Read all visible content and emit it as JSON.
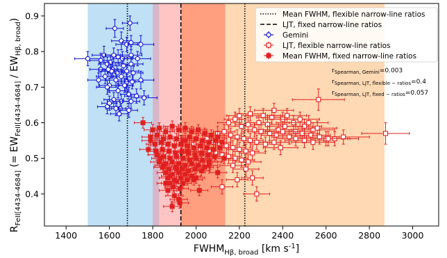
{
  "chart_data": {
    "type": "scatter",
    "xlabel": "FWHM",
    "xlabel_sub": "Hβ, broad",
    "xlabel_unit": " [km s",
    "xlabel_unit_sup": "-1",
    "xlabel_end": "]",
    "ylabel_main": "R",
    "ylabel_sub1": "FeII[4434-4684]",
    "ylabel_mid": " (= EW",
    "ylabel_sub2": "FeII[4434-4684]",
    "ylabel_mid2": " / EW",
    "ylabel_sub3": "Hβ, broad",
    "ylabel_end": ")",
    "xlim": [
      1300,
      3120
    ],
    "ylim": [
      0.31,
      0.935
    ],
    "xticks": [
      1400,
      1600,
      1800,
      2000,
      2200,
      2400,
      2600,
      2800,
      3000
    ],
    "yticks": [
      0.4,
      0.5,
      0.6,
      0.7,
      0.8,
      0.9
    ],
    "grid": false,
    "legend_position": "top-right",
    "bands": [
      {
        "x0": 1500,
        "x1": 1800,
        "color": "#bfe0f5"
      },
      {
        "x0": 1800,
        "x1": 1830,
        "color": "#d6b6c8"
      },
      {
        "x0": 1830,
        "x1": 1930,
        "color": "#ffc4c4"
      },
      {
        "x0": 1930,
        "x1": 2135,
        "color": "#ff9f80"
      },
      {
        "x0": 2135,
        "x1": 2870,
        "color": "#ffd9b3"
      }
    ],
    "vlines": [
      {
        "x": 1683,
        "style": "dotted"
      },
      {
        "x": 1930,
        "style": "dashed"
      },
      {
        "x": 2225,
        "style": "dotted"
      }
    ],
    "legend": [
      {
        "label": "Mean FWHM, flexible narrow-line ratios",
        "marker": "dotted-line"
      },
      {
        "label": "LJT, fixed narrow-line ratios",
        "marker": "dashed-line"
      },
      {
        "label": "Gemini",
        "marker": "open-circle",
        "color": "#1010d0"
      },
      {
        "label": "LJT, flexible narrow-line ratios",
        "marker": "open-square",
        "color": "#e02020"
      },
      {
        "label": "Mean FWHM, fixed narrow-line ratios",
        "marker": "filled-square",
        "color": "#e02020"
      }
    ],
    "annotations": [
      {
        "main": "r",
        "sub": "Spearman, Gemini",
        "value": "=0.003"
      },
      {
        "main": "r",
        "sub": "Spearman, LJT, flexible − ratios",
        "value": "=0.4"
      },
      {
        "main": "r",
        "sub": "Spearman, LJT, fixed − ratios",
        "value": "=0.057"
      }
    ],
    "series": [
      {
        "name": "Gemini",
        "color": "#1010d0",
        "marker": "open-circle",
        "x": [
          1695,
          1625,
          1655,
          1700,
          1680,
          1745,
          1500,
          1560,
          1575,
          1640,
          1605,
          1590,
          1660,
          1700,
          1730,
          1560,
          1605,
          1635,
          1550,
          1680,
          1615,
          1710,
          1655,
          1630,
          1675,
          1600,
          1590,
          1680,
          1640,
          1705,
          1745,
          1690,
          1725,
          1760,
          1620,
          1655,
          1700,
          1590,
          1650,
          1600,
          1690,
          1645,
          1610,
          1665,
          1670,
          1700,
          1595,
          1620,
          1580,
          1630
        ],
        "y": [
          0.88,
          0.865,
          0.83,
          0.825,
          0.82,
          0.82,
          0.78,
          0.775,
          0.79,
          0.785,
          0.77,
          0.765,
          0.78,
          0.79,
          0.78,
          0.75,
          0.745,
          0.74,
          0.72,
          0.745,
          0.75,
          0.74,
          0.73,
          0.72,
          0.705,
          0.705,
          0.7,
          0.715,
          0.69,
          0.715,
          0.72,
          0.68,
          0.675,
          0.67,
          0.665,
          0.66,
          0.66,
          0.645,
          0.64,
          0.655,
          0.635,
          0.625,
          0.745,
          0.76,
          0.705,
          0.765,
          0.75,
          0.79,
          0.73,
          0.64
        ],
        "xerr": [
          35,
          40,
          45,
          40,
          50,
          60,
          60,
          50,
          55,
          70,
          50,
          40,
          45,
          50,
          60,
          50,
          55,
          45,
          50,
          55,
          40,
          45,
          40,
          45,
          35,
          45,
          50,
          40,
          45,
          50,
          60,
          40,
          55,
          60,
          45,
          40,
          40,
          45,
          40,
          35,
          40,
          40,
          45,
          50,
          40,
          55,
          45,
          40,
          40,
          45
        ],
        "yerr": [
          0.02,
          0.025,
          0.025,
          0.02,
          0.02,
          0.025,
          0.02,
          0.02,
          0.025,
          0.02,
          0.02,
          0.02,
          0.02,
          0.025,
          0.02,
          0.02,
          0.02,
          0.02,
          0.02,
          0.02,
          0.02,
          0.02,
          0.02,
          0.02,
          0.02,
          0.02,
          0.02,
          0.02,
          0.02,
          0.02,
          0.025,
          0.02,
          0.02,
          0.02,
          0.02,
          0.02,
          0.02,
          0.02,
          0.02,
          0.02,
          0.02,
          0.02,
          0.02,
          0.02,
          0.02,
          0.02,
          0.02,
          0.02,
          0.02,
          0.02
        ]
      },
      {
        "name": "LJT, flexible narrow-line ratios",
        "color": "#e02020",
        "marker": "open-square",
        "x": [
          2565,
          2875,
          2360,
          2200,
          2250,
          2310,
          2350,
          2400,
          2420,
          2450,
          2480,
          2500,
          2520,
          2540,
          2560,
          2600,
          2640,
          2680,
          2290,
          2330,
          2380,
          2410,
          2460,
          2490,
          2530,
          2570,
          2610,
          2150,
          2180,
          2210,
          2240,
          2270,
          2300,
          2340,
          2370,
          2400,
          2430,
          2460,
          2500,
          2540,
          2100,
          2130,
          2160,
          2190,
          2220,
          2250,
          2280,
          2320,
          2360,
          2390,
          2050,
          2080,
          2110,
          2140,
          2170,
          2200,
          2230,
          2260,
          2020,
          2060,
          2090,
          2120,
          2150,
          2180,
          2210,
          2240,
          2170,
          2230,
          2260,
          2190,
          2120,
          2280,
          2000,
          1990,
          2035,
          2065
        ],
        "y": [
          0.665,
          0.57,
          0.635,
          0.62,
          0.625,
          0.62,
          0.615,
          0.61,
          0.62,
          0.6,
          0.61,
          0.59,
          0.6,
          0.58,
          0.585,
          0.555,
          0.555,
          0.56,
          0.6,
          0.595,
          0.58,
          0.59,
          0.575,
          0.57,
          0.565,
          0.56,
          0.555,
          0.6,
          0.61,
          0.59,
          0.595,
          0.58,
          0.575,
          0.57,
          0.565,
          0.575,
          0.56,
          0.555,
          0.55,
          0.545,
          0.57,
          0.575,
          0.565,
          0.56,
          0.555,
          0.55,
          0.545,
          0.54,
          0.545,
          0.53,
          0.555,
          0.545,
          0.54,
          0.535,
          0.53,
          0.525,
          0.52,
          0.515,
          0.525,
          0.52,
          0.515,
          0.51,
          0.505,
          0.5,
          0.495,
          0.49,
          0.48,
          0.47,
          0.445,
          0.44,
          0.42,
          0.4,
          0.5,
          0.54,
          0.5,
          0.49
        ],
        "xerr": [
          120,
          110,
          90,
          60,
          70,
          80,
          70,
          80,
          90,
          80,
          90,
          80,
          90,
          100,
          90,
          100,
          110,
          120,
          60,
          60,
          70,
          80,
          80,
          80,
          90,
          90,
          100,
          50,
          50,
          60,
          60,
          60,
          60,
          70,
          70,
          80,
          80,
          90,
          90,
          100,
          50,
          50,
          50,
          60,
          60,
          60,
          60,
          70,
          70,
          80,
          50,
          50,
          50,
          50,
          60,
          60,
          60,
          60,
          50,
          50,
          50,
          50,
          50,
          60,
          60,
          60,
          60,
          60,
          50,
          50,
          50,
          60,
          50,
          50,
          50,
          50
        ],
        "yerr": [
          0.03,
          0.03,
          0.02,
          0.02,
          0.02,
          0.02,
          0.02,
          0.02,
          0.02,
          0.02,
          0.02,
          0.02,
          0.02,
          0.02,
          0.02,
          0.02,
          0.02,
          0.02,
          0.02,
          0.02,
          0.02,
          0.02,
          0.02,
          0.02,
          0.02,
          0.02,
          0.02,
          0.02,
          0.02,
          0.02,
          0.02,
          0.02,
          0.02,
          0.02,
          0.02,
          0.02,
          0.02,
          0.02,
          0.02,
          0.02,
          0.02,
          0.02,
          0.02,
          0.02,
          0.02,
          0.02,
          0.02,
          0.02,
          0.02,
          0.02,
          0.02,
          0.02,
          0.02,
          0.02,
          0.02,
          0.02,
          0.02,
          0.02,
          0.02,
          0.02,
          0.02,
          0.02,
          0.02,
          0.02,
          0.02,
          0.02,
          0.02,
          0.02,
          0.02,
          0.02,
          0.02,
          0.02,
          0.02,
          0.02,
          0.02,
          0.02
        ]
      },
      {
        "name": "Mean FWHM, fixed narrow-line ratios",
        "color": "#e02020",
        "marker": "filled-square",
        "x": [
          1755,
          1800,
          1830,
          1860,
          1890,
          1920,
          1950,
          1980,
          2010,
          2040,
          2070,
          2100,
          1790,
          1820,
          1850,
          1880,
          1910,
          1940,
          1970,
          2000,
          2030,
          2060,
          2090,
          2120,
          1810,
          1840,
          1870,
          1900,
          1930,
          1960,
          1990,
          2020,
          2050,
          2080,
          2110,
          1780,
          1815,
          1845,
          1875,
          1905,
          1935,
          1965,
          1995,
          2025,
          2055,
          2085,
          1820,
          1850,
          1880,
          1910,
          1940,
          1970,
          2000,
          2030,
          2060,
          1830,
          1860,
          1890,
          1920,
          1950,
          1980,
          2010,
          2040,
          1845,
          1875,
          1905,
          1935,
          1965,
          1995,
          2025,
          1860,
          1890,
          1920,
          1950,
          1980,
          1870,
          1900,
          1930,
          1960,
          1880,
          1910,
          1940,
          1895,
          1925,
          1850,
          1880,
          1910,
          1870,
          1790,
          1920,
          1960,
          1990,
          2015,
          1835,
          1900,
          1925,
          1890,
          1860,
          2060,
          2100,
          2130,
          2000,
          1950
        ],
        "y": [
          0.6,
          0.58,
          0.585,
          0.575,
          0.59,
          0.58,
          0.585,
          0.575,
          0.58,
          0.57,
          0.565,
          0.56,
          0.56,
          0.565,
          0.555,
          0.56,
          0.555,
          0.55,
          0.56,
          0.555,
          0.55,
          0.545,
          0.55,
          0.545,
          0.54,
          0.545,
          0.54,
          0.535,
          0.54,
          0.535,
          0.53,
          0.535,
          0.53,
          0.525,
          0.53,
          0.525,
          0.52,
          0.525,
          0.52,
          0.515,
          0.52,
          0.515,
          0.51,
          0.515,
          0.51,
          0.505,
          0.51,
          0.505,
          0.5,
          0.505,
          0.5,
          0.495,
          0.5,
          0.495,
          0.49,
          0.49,
          0.485,
          0.49,
          0.485,
          0.48,
          0.485,
          0.48,
          0.475,
          0.475,
          0.47,
          0.475,
          0.47,
          0.465,
          0.47,
          0.465,
          0.46,
          0.455,
          0.46,
          0.455,
          0.45,
          0.445,
          0.44,
          0.445,
          0.44,
          0.43,
          0.435,
          0.43,
          0.42,
          0.415,
          0.48,
          0.45,
          0.47,
          0.41,
          0.55,
          0.385,
          0.52,
          0.44,
          0.41,
          0.5,
          0.395,
          0.375,
          0.365,
          0.43,
          0.48,
          0.46,
          0.5,
          0.445,
          0.55
        ],
        "xerr": [
          40,
          40,
          40,
          40,
          40,
          40,
          40,
          40,
          40,
          40,
          40,
          40,
          40,
          40,
          40,
          40,
          40,
          40,
          40,
          40,
          40,
          40,
          40,
          40,
          40,
          40,
          40,
          40,
          40,
          40,
          40,
          40,
          40,
          40,
          40,
          40,
          40,
          40,
          40,
          40,
          40,
          40,
          40,
          40,
          40,
          40,
          40,
          40,
          40,
          40,
          40,
          40,
          40,
          40,
          40,
          40,
          40,
          40,
          40,
          40,
          40,
          40,
          40,
          40,
          40,
          40,
          40,
          40,
          40,
          40,
          40,
          40,
          40,
          40,
          40,
          40,
          40,
          40,
          40,
          40,
          40,
          40,
          40,
          40,
          40,
          40,
          40,
          40,
          40,
          40,
          40,
          40,
          40,
          40,
          40,
          40,
          40,
          40,
          40,
          40,
          40,
          40,
          40
        ],
        "yerr": [
          0.015,
          0.015,
          0.015,
          0.015,
          0.015,
          0.015,
          0.015,
          0.015,
          0.015,
          0.015,
          0.015,
          0.015,
          0.015,
          0.015,
          0.015,
          0.015,
          0.015,
          0.015,
          0.015,
          0.015,
          0.015,
          0.015,
          0.015,
          0.015,
          0.015,
          0.015,
          0.015,
          0.015,
          0.015,
          0.015,
          0.015,
          0.015,
          0.015,
          0.015,
          0.015,
          0.015,
          0.015,
          0.015,
          0.015,
          0.015,
          0.015,
          0.015,
          0.015,
          0.015,
          0.015,
          0.015,
          0.015,
          0.015,
          0.015,
          0.015,
          0.015,
          0.015,
          0.015,
          0.015,
          0.015,
          0.015,
          0.015,
          0.015,
          0.015,
          0.015,
          0.015,
          0.015,
          0.015,
          0.015,
          0.015,
          0.015,
          0.015,
          0.015,
          0.015,
          0.015,
          0.015,
          0.015,
          0.015,
          0.015,
          0.015,
          0.015,
          0.015,
          0.015,
          0.015,
          0.015,
          0.015,
          0.015,
          0.015,
          0.015,
          0.015,
          0.015,
          0.015,
          0.015,
          0.015,
          0.015,
          0.015,
          0.015,
          0.015,
          0.015,
          0.015,
          0.015,
          0.015,
          0.015,
          0.015,
          0.015,
          0.015,
          0.015,
          0.015
        ]
      }
    ]
  }
}
